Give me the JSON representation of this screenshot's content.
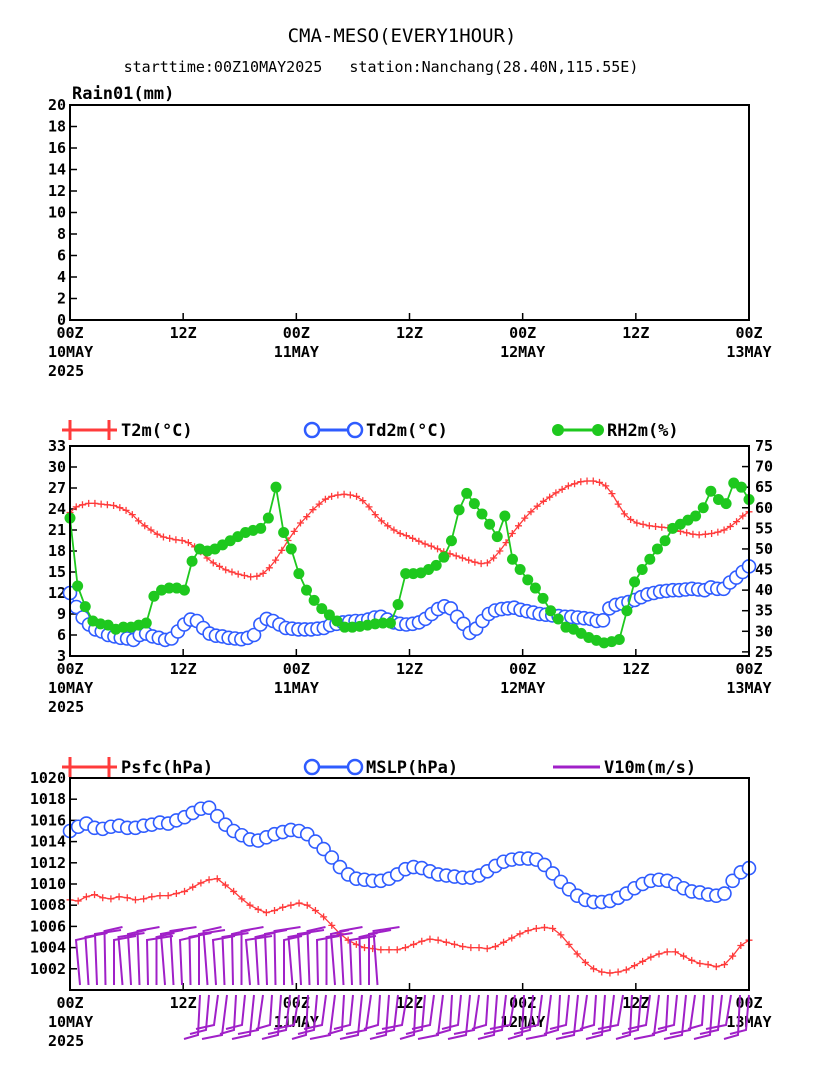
{
  "header": {
    "title": "CMA-MESO(EVERY1HOUR)",
    "subtitle": "starttime:00Z10MAY2025   station:Nanchang(28.40N,115.55E)"
  },
  "colors": {
    "t2m": "#ff3b3b",
    "td2m": "#2f5cff",
    "rh2m": "#1ec81e",
    "psfc": "#ff3b3b",
    "mslp": "#2f5cff",
    "v10m": "#a020c8"
  },
  "x_axis": {
    "hours": [
      0,
      12,
      24,
      36,
      48,
      60,
      72
    ],
    "labels": [
      [
        "00Z",
        "10MAY",
        "2025"
      ],
      [
        "12Z"
      ],
      [
        "00Z",
        "11MAY"
      ],
      [
        "12Z"
      ],
      [
        "00Z",
        "12MAY"
      ],
      [
        "12Z"
      ],
      [
        "00Z",
        "13MAY"
      ]
    ]
  },
  "chart_data": [
    {
      "type": "bar",
      "ylabel": "Rain01(mm)",
      "ylim": [
        0,
        20
      ],
      "yticks": [
        0,
        2,
        4,
        6,
        8,
        10,
        12,
        14,
        16,
        18,
        20
      ],
      "xlim": [
        0,
        72
      ],
      "series": [
        {
          "name": "Rain01(mm)",
          "values": []
        }
      ]
    },
    {
      "type": "line",
      "ylim": [
        3,
        33
      ],
      "yticks": [
        3,
        6,
        9,
        12,
        15,
        18,
        21,
        24,
        27,
        30,
        33
      ],
      "y2lim": [
        24,
        75
      ],
      "y2ticks": [
        25,
        30,
        35,
        40,
        45,
        50,
        55,
        60,
        65,
        70,
        75
      ],
      "xlim": [
        0,
        72
      ],
      "legend_position": "top",
      "series": [
        {
          "name": "T2m(°C)",
          "axis": "left",
          "marker": "plus",
          "values": [
            23.5,
            24.3,
            24.6,
            24.8,
            24.8,
            24.7,
            24.6,
            24.5,
            24.2,
            23.8,
            23.2,
            22.3,
            21.6,
            21.0,
            20.4,
            20.0,
            19.8,
            19.6,
            19.5,
            19.2,
            18.6,
            17.9,
            17.0,
            16.3,
            15.8,
            15.3,
            15.0,
            14.7,
            14.5,
            14.3,
            14.4,
            14.8,
            15.6,
            16.7,
            18.1,
            19.5,
            20.8,
            22.0,
            22.9,
            23.9,
            24.7,
            25.4,
            25.8,
            26.0,
            26.1,
            26.0,
            25.8,
            25.2,
            24.3,
            23.2,
            22.3,
            21.6,
            21.0,
            20.5,
            20.2,
            19.8,
            19.4,
            19.0,
            18.7,
            18.3,
            17.9,
            17.6,
            17.3,
            17.0,
            16.7,
            16.4,
            16.2,
            16.3,
            17.0,
            18.0,
            19.2,
            20.5,
            21.6,
            22.7,
            23.6,
            24.4,
            25.1,
            25.7,
            26.3,
            26.8,
            27.3,
            27.6,
            27.9,
            28.0,
            28.0,
            27.8,
            27.3,
            26.2,
            24.7,
            23.3,
            22.5,
            22.0,
            21.8,
            21.6,
            21.5,
            21.4,
            21.3,
            21.1,
            20.8,
            20.6,
            20.4,
            20.3,
            20.4,
            20.5,
            20.7,
            21.0,
            21.5,
            22.2,
            23.0,
            23.6
          ]
        },
        {
          "name": "Td2m(°C)",
          "axis": "left",
          "marker": "circle",
          "values": [
            12.0,
            10.0,
            8.5,
            7.5,
            6.8,
            6.5,
            6.0,
            5.8,
            5.6,
            5.5,
            5.3,
            6.0,
            6.2,
            5.8,
            5.6,
            5.3,
            5.5,
            6.5,
            7.5,
            8.2,
            8.0,
            7.0,
            6.2,
            5.9,
            5.8,
            5.6,
            5.5,
            5.4,
            5.6,
            6.0,
            7.5,
            8.3,
            8.0,
            7.5,
            7.0,
            6.9,
            6.8,
            6.8,
            6.8,
            6.9,
            7.0,
            7.4,
            7.6,
            7.8,
            7.9,
            8.0,
            8.0,
            8.2,
            8.5,
            8.6,
            8.2,
            7.8,
            7.6,
            7.5,
            7.6,
            7.8,
            8.3,
            9.0,
            9.7,
            10.1,
            9.8,
            8.6,
            7.6,
            6.3,
            6.9,
            8.0,
            9.0,
            9.5,
            9.7,
            9.8,
            9.9,
            9.6,
            9.4,
            9.2,
            9.0,
            8.9,
            8.8,
            8.7,
            8.6,
            8.6,
            8.5,
            8.4,
            8.3,
            8.0,
            8.1,
            9.8,
            10.3,
            10.5,
            10.7,
            11.0,
            11.4,
            11.8,
            12.0,
            12.2,
            12.3,
            12.4,
            12.4,
            12.5,
            12.6,
            12.5,
            12.4,
            12.8,
            12.6,
            12.6,
            13.5,
            14.2,
            15.0,
            15.8
          ]
        },
        {
          "name": "RH2m(%)",
          "axis": "right",
          "marker": "dot",
          "values": [
            57.5,
            41.0,
            36.0,
            32.5,
            31.8,
            31.5,
            30.5,
            31.0,
            31.0,
            31.5,
            32.0,
            38.5,
            40.0,
            40.5,
            40.5,
            40.0,
            47.0,
            50.0,
            49.5,
            50.0,
            51.0,
            52.0,
            53.0,
            54.0,
            54.5,
            55.0,
            57.5,
            65.0,
            54.0,
            50.0,
            44.0,
            40.0,
            37.5,
            35.5,
            34.0,
            32.5,
            31.0,
            31.0,
            31.2,
            31.5,
            31.8,
            32.0,
            32.0,
            36.5,
            44.0,
            44.0,
            44.2,
            45.0,
            46.0,
            48.0,
            52.0,
            59.5,
            63.5,
            61.0,
            58.5,
            56.0,
            53.0,
            58.0,
            47.5,
            45.0,
            42.5,
            40.5,
            38.0,
            35.0,
            33.0,
            31.0,
            30.5,
            29.5,
            28.5,
            27.8,
            27.2,
            27.5,
            28.0,
            35.0,
            42.0,
            45.0,
            47.5,
            50.0,
            52.0,
            55.0,
            56.0,
            57.0,
            58.0,
            60.0,
            64.0,
            62.0,
            61.0,
            66.0,
            65.0,
            62.0
          ]
        }
      ]
    },
    {
      "type": "line",
      "ylim": [
        1000,
        1020
      ],
      "yticks": [
        1002,
        1004,
        1006,
        1008,
        1010,
        1012,
        1014,
        1016,
        1018,
        1020
      ],
      "xlim": [
        0,
        72
      ],
      "legend_position": "top",
      "series": [
        {
          "name": "Psfc(hPa)",
          "marker": "plus",
          "values": [
            1008.5,
            1008.4,
            1008.8,
            1009.0,
            1008.7,
            1008.6,
            1008.8,
            1008.7,
            1008.5,
            1008.6,
            1008.8,
            1008.9,
            1008.9,
            1009.1,
            1009.3,
            1009.7,
            1010.1,
            1010.4,
            1010.5,
            1009.9,
            1009.3,
            1008.6,
            1008.0,
            1007.6,
            1007.3,
            1007.5,
            1007.8,
            1008.0,
            1008.2,
            1008.0,
            1007.5,
            1006.9,
            1006.1,
            1005.3,
            1004.7,
            1004.3,
            1004.0,
            1003.9,
            1003.8,
            1003.8,
            1003.8,
            1004.0,
            1004.3,
            1004.6,
            1004.8,
            1004.7,
            1004.5,
            1004.3,
            1004.1,
            1004.0,
            1004.0,
            1003.9,
            1004.1,
            1004.5,
            1004.9,
            1005.3,
            1005.6,
            1005.8,
            1005.9,
            1005.8,
            1005.2,
            1004.3,
            1003.4,
            1002.6,
            1002.0,
            1001.7,
            1001.6,
            1001.7,
            1001.9,
            1002.3,
            1002.7,
            1003.1,
            1003.4,
            1003.6,
            1003.6,
            1003.2,
            1002.8,
            1002.5,
            1002.4,
            1002.2,
            1002.4,
            1003.2,
            1004.2,
            1004.7
          ]
        },
        {
          "name": "MSLP(hPa)",
          "marker": "circle",
          "values": [
            1015.0,
            1015.4,
            1015.7,
            1015.3,
            1015.2,
            1015.4,
            1015.5,
            1015.3,
            1015.3,
            1015.5,
            1015.6,
            1015.8,
            1015.7,
            1016.0,
            1016.3,
            1016.7,
            1017.1,
            1017.2,
            1016.4,
            1015.6,
            1015.0,
            1014.6,
            1014.2,
            1014.1,
            1014.4,
            1014.7,
            1014.9,
            1015.1,
            1015.0,
            1014.7,
            1014.0,
            1013.3,
            1012.5,
            1011.6,
            1010.9,
            1010.5,
            1010.4,
            1010.3,
            1010.3,
            1010.5,
            1010.9,
            1011.4,
            1011.6,
            1011.5,
            1011.2,
            1010.9,
            1010.8,
            1010.7,
            1010.6,
            1010.6,
            1010.8,
            1011.2,
            1011.7,
            1012.1,
            1012.3,
            1012.4,
            1012.4,
            1012.3,
            1011.8,
            1011.0,
            1010.2,
            1009.5,
            1008.9,
            1008.5,
            1008.3,
            1008.3,
            1008.4,
            1008.7,
            1009.1,
            1009.6,
            1010.0,
            1010.3,
            1010.4,
            1010.3,
            1010.0,
            1009.6,
            1009.3,
            1009.2,
            1009.0,
            1008.9,
            1009.1,
            1010.3,
            1011.1,
            1011.5
          ]
        },
        {
          "name": "V10m(m/s)",
          "marker": "barb"
        }
      ]
    }
  ]
}
